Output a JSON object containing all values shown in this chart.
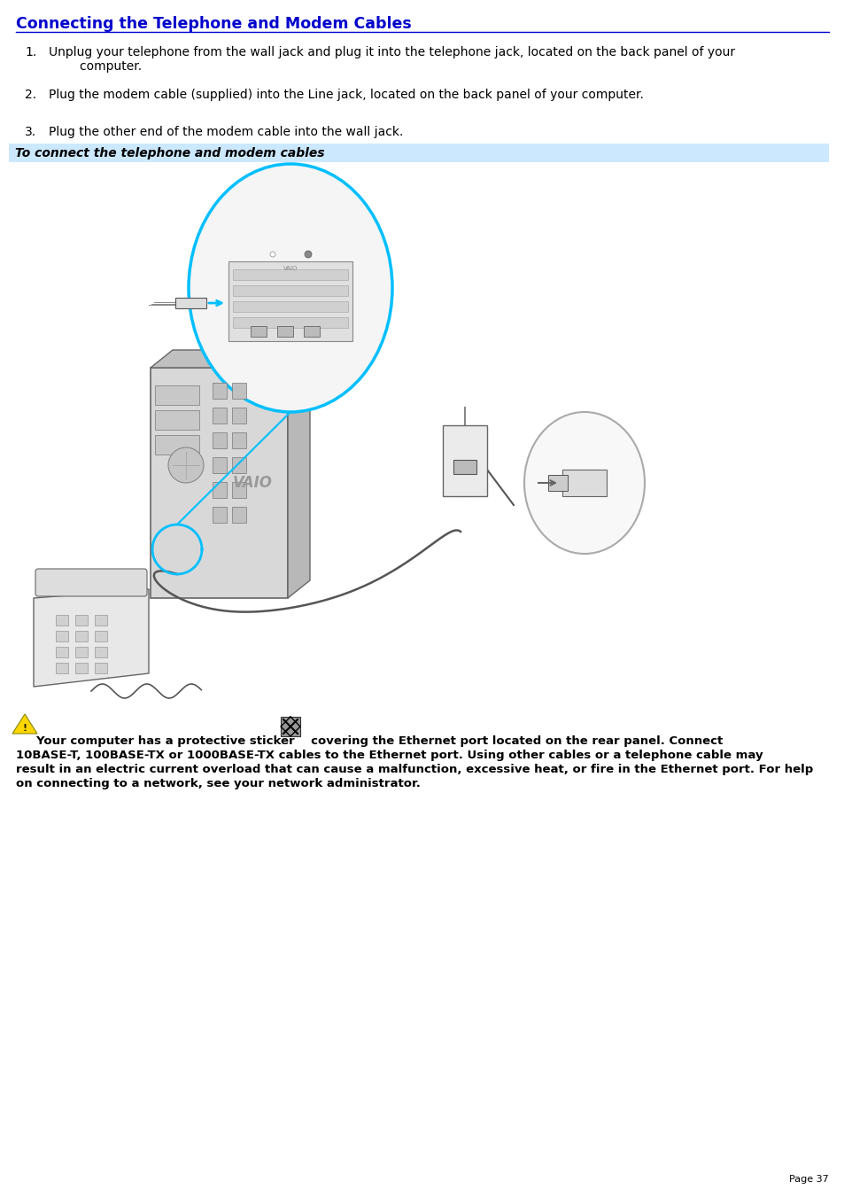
{
  "title": "Connecting the Telephone and Modem Cables",
  "title_color": "#0000CC",
  "title_fontsize": 12.5,
  "background_color": "#ffffff",
  "steps": [
    [
      "1.",
      "Unplug your telephone from the wall jack and plug it into the telephone jack, located on the back panel of your\n        computer."
    ],
    [
      "2.",
      "Plug the modem cable (supplied) into the Line jack, located on the back panel of your computer."
    ],
    [
      "3.",
      "Plug the other end of the modem cable into the wall jack."
    ]
  ],
  "steps_fontsize": 10,
  "banner_text": "To connect the telephone and modem cables",
  "banner_bg": "#cce8ff",
  "banner_fontsize": 10,
  "warning_line1": "     Your computer has a protective sticker    covering the Ethernet port located on the rear panel. Connect",
  "warning_line2": "10BASE-T, 100BASE-TX or 1000BASE-TX cables to the Ethernet port. Using other cables or a telephone cable may",
  "warning_line3": "result in an electric current overload that can cause a malfunction, excessive heat, or fire in the Ethernet port. For help",
  "warning_line4": "on connecting to a network, see your network administrator.",
  "warning_fontsize": 9.5,
  "page_number": "Page 37",
  "line_color": "#0000CC",
  "cyan_color": "#00BFFF"
}
